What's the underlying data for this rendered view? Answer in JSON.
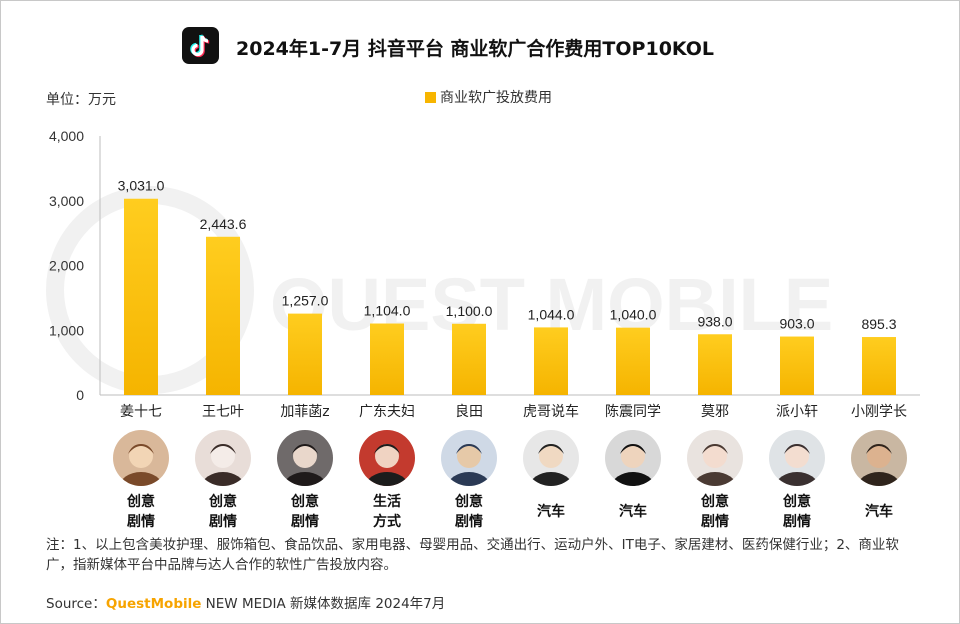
{
  "header": {
    "title": "2024年1-7月 抖音平台 商业软广合作费用TOP10KOL",
    "logo_icon": "tiktok-logo-icon"
  },
  "unit_label": "单位：万元",
  "watermark": "QUEST MOBILE",
  "chart_data": {
    "type": "bar",
    "categories": [
      "姜十七",
      "王七叶",
      "加菲菡z",
      "广东夫妇",
      "良田",
      "虎哥说车",
      "陈震同学",
      "莫邪",
      "派小轩",
      "小刚学长"
    ],
    "series": [
      {
        "name": "商业软广投放费用",
        "values": [
          3031.0,
          2443.6,
          1257.0,
          1104.0,
          1100.0,
          1044.0,
          1040.0,
          938.0,
          903.0,
          895.3
        ]
      }
    ],
    "data_labels": [
      "3,031.0",
      "2,443.6",
      "1,257.0",
      "1,104.0",
      "1,100.0",
      "1,044.0",
      "1,040.0",
      "938.0",
      "903.0",
      "895.3"
    ],
    "y_ticks": [
      "0",
      "1,000",
      "2,000",
      "3,000",
      "4,000"
    ],
    "ylim": [
      0,
      4000
    ],
    "grid": false,
    "legend": "top-center",
    "bar_color": "#f7b500"
  },
  "kol_categories": [
    {
      "line1": "创意",
      "line2": "剧情"
    },
    {
      "line1": "创意",
      "line2": "剧情"
    },
    {
      "line1": "创意",
      "line2": "剧情"
    },
    {
      "line1": "生活",
      "line2": "方式"
    },
    {
      "line1": "创意",
      "line2": "剧情"
    },
    {
      "line1": "汽车",
      "line2": ""
    },
    {
      "line1": "汽车",
      "line2": ""
    },
    {
      "line1": "创意",
      "line2": "剧情"
    },
    {
      "line1": "创意",
      "line2": "剧情"
    },
    {
      "line1": "汽车",
      "line2": ""
    }
  ],
  "note": "注：1、以上包含美妆护理、服饰箱包、食品饮品、家用电器、母婴用品、交通出行、运动户外、IT电子、家居建材、医药保健行业；2、商业软广，指新媒体平台中品牌与达人合作的软性广告投放内容。",
  "source": {
    "prefix": "Source：",
    "brand": "QuestMobile",
    "suffix": " NEW MEDIA 新媒体数据库 2024年7月"
  }
}
